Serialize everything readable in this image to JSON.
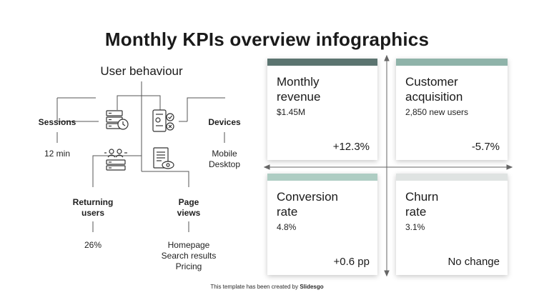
{
  "title": "Monthly KPIs overview infographics",
  "user_behaviour": {
    "heading": "User behaviour",
    "sessions": {
      "label": "Sessions",
      "value": "12 min"
    },
    "devices": {
      "label": "Devices",
      "values": [
        "Mobile",
        "Desktop"
      ]
    },
    "returning_users": {
      "label": [
        "Returning",
        "users"
      ],
      "value": "26%"
    },
    "page_views": {
      "label": [
        "Page",
        "views"
      ],
      "values": [
        "Homepage",
        "Search results",
        "Pricing"
      ]
    },
    "icons": [
      "server-clock-icon",
      "mobile-checklist-icon",
      "users-server-icon",
      "document-view-icon"
    ]
  },
  "kpis": {
    "monthly_revenue": {
      "title": [
        "Monthly",
        "revenue"
      ],
      "value": "$1.45M",
      "change": "+12.3%"
    },
    "customer_acquisition": {
      "title": [
        "Customer",
        "acquisition"
      ],
      "value": "2,850 new users",
      "change": "-5.7%"
    },
    "conversion_rate": {
      "title": [
        "Conversion",
        "rate"
      ],
      "value": "4.8%",
      "change": "+0.6 pp"
    },
    "churn_rate": {
      "title": [
        "Churn",
        "rate"
      ],
      "value": "3.1%",
      "change": "No change"
    }
  },
  "colors": {
    "bar_dark": "#5b7470",
    "bar_mid": "#8fb3a9",
    "bar_light": "#aecdc3",
    "bar_lightest": "#dfe3e2",
    "line": "#555555"
  },
  "footer": {
    "prefix": "This template has been created by",
    "brand": "Slidesgo"
  }
}
